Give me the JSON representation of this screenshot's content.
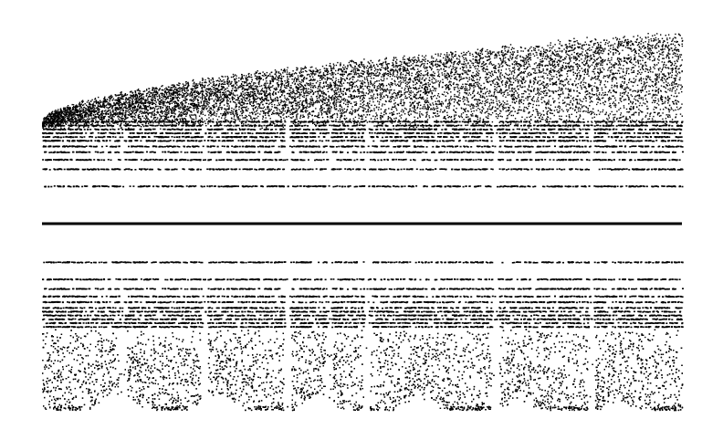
{
  "chart_data": {
    "type": "scatter",
    "title": "",
    "xlabel": "",
    "ylabel": "",
    "axes_visible": false,
    "grid": false,
    "legend": "none",
    "marker_color": "#000000",
    "baseline_color": "#000000",
    "x_range": [
      0,
      1
    ],
    "y_range": [
      -1,
      1
    ],
    "baseline_y": 0,
    "description_values": {
      "discrete_levels_upper": [
        0.2,
        0.29,
        0.34,
        0.38,
        0.41,
        0.44,
        0.46,
        0.48,
        0.5,
        0.52,
        0.54
      ],
      "discrete_levels_lower": [
        -0.2,
        -0.29,
        -0.34,
        -0.38,
        -0.41,
        -0.44,
        -0.46,
        -0.48,
        -0.5,
        -0.52,
        -0.54
      ],
      "upper_cloud_top": {
        "x_start": 0.0,
        "y_start": 0.5,
        "x_end": 1.0,
        "y_end": 1.0
      },
      "lower_cloud_bottom_max": -0.97,
      "column_gaps_x": [
        0.125,
        0.253,
        0.383,
        0.448,
        0.506,
        0.708,
        0.858
      ]
    }
  }
}
